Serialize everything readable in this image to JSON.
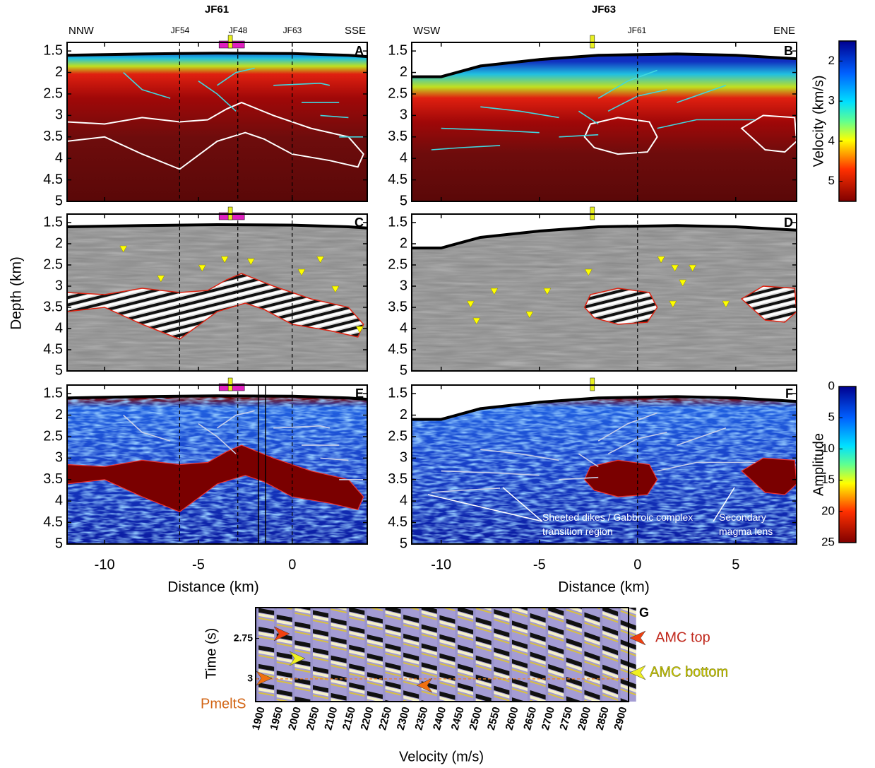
{
  "figure": {
    "left_title": "JF61",
    "right_title": "JF63",
    "left_labels": [
      "NNW",
      "JF54",
      "JF48",
      "JF63",
      "SSE"
    ],
    "right_labels": [
      "WSW",
      "JF61",
      "ENE"
    ],
    "panel_letters": [
      "A",
      "B",
      "C",
      "D",
      "E",
      "F"
    ],
    "y_label": "Depth (km)",
    "x_label": "Distance (km)",
    "depth_axis": {
      "ylim": [
        1.3,
        5
      ],
      "yticks": [
        1.5,
        2,
        2.5,
        3,
        3.5,
        4,
        4.5,
        5
      ]
    },
    "left_axis": {
      "xlim": [
        -12,
        4
      ],
      "xticks": [
        -10,
        -5,
        0
      ]
    },
    "right_axis": {
      "xlim": [
        -11.5,
        8.1
      ],
      "xticks": [
        -10,
        -5,
        0,
        5
      ]
    },
    "velocity_colorbar": {
      "label": "Velocity (km/s)",
      "lim": [
        1.5,
        5.5
      ],
      "ticks": [
        2,
        3,
        4,
        5
      ]
    },
    "amplitude_colorbar": {
      "label": "Amplitude",
      "lim": [
        0,
        25
      ],
      "ticks": [
        0,
        5,
        10,
        15,
        20,
        25
      ]
    },
    "annotations": [
      "Sheeted dikes / Gabbroic complex transition region",
      "Secondary magma lens"
    ]
  },
  "panel_g": {
    "letter": "G",
    "y_label": "Time (s)",
    "ylim": [
      2.56,
      3.14
    ],
    "yticks": [
      2.75,
      3
    ],
    "x_label": "Velocity (m/s)",
    "xlim": [
      1890,
      2920
    ],
    "xticks": [
      1900,
      1950,
      2000,
      2050,
      2100,
      2150,
      2200,
      2250,
      2300,
      2350,
      2400,
      2450,
      2500,
      2550,
      2600,
      2650,
      2700,
      2750,
      2800,
      2850,
      2900
    ],
    "markers": [
      "AMC top",
      "AMC bottom",
      "PmeltS"
    ]
  }
}
